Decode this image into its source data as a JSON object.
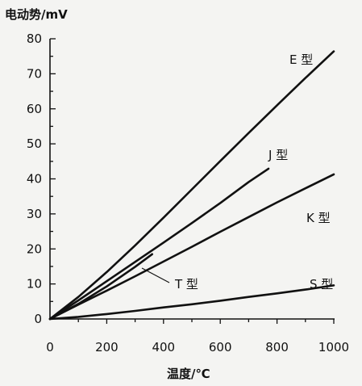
{
  "chart_data": {
    "type": "line",
    "xlabel": "温度/℃",
    "ylabel": "电动势/mV",
    "xlim": [
      0,
      1000
    ],
    "ylim": [
      0,
      80
    ],
    "x_ticks": [
      0,
      200,
      400,
      600,
      800,
      1000
    ],
    "y_ticks": [
      0,
      10,
      20,
      30,
      40,
      50,
      60,
      70,
      80
    ],
    "x_tick_labels": [
      "0",
      "200",
      "400",
      "600",
      "800",
      "1000"
    ],
    "y_tick_labels": [
      "0",
      "10",
      "20",
      "30",
      "40",
      "50",
      "60",
      "70",
      "80"
    ],
    "grid": false,
    "legend": "none",
    "series": [
      {
        "name": "E 型",
        "x": [
          0,
          100,
          200,
          300,
          400,
          500,
          600,
          700,
          800,
          900,
          1000
        ],
        "y": [
          0,
          6.3,
          13.4,
          21.0,
          28.9,
          37.0,
          45.1,
          53.1,
          61.0,
          68.8,
          76.4
        ]
      },
      {
        "name": "J 型",
        "x": [
          0,
          100,
          200,
          300,
          400,
          500,
          600,
          700,
          770
        ],
        "y": [
          0,
          5.3,
          10.8,
          16.3,
          21.8,
          27.4,
          33.1,
          39.1,
          42.9
        ]
      },
      {
        "name": "K 型",
        "x": [
          0,
          100,
          200,
          300,
          400,
          500,
          600,
          700,
          800,
          900,
          1000
        ],
        "y": [
          0,
          4.1,
          8.1,
          12.2,
          16.4,
          20.6,
          24.9,
          29.1,
          33.3,
          37.3,
          41.3
        ]
      },
      {
        "name": "T 型",
        "x": [
          0,
          100,
          200,
          300,
          360
        ],
        "y": [
          0,
          4.3,
          9.3,
          14.9,
          18.5
        ]
      },
      {
        "name": "S 型",
        "x": [
          0,
          100,
          200,
          300,
          400,
          500,
          600,
          700,
          800,
          900,
          1000
        ],
        "y": [
          0,
          0.6,
          1.4,
          2.3,
          3.3,
          4.2,
          5.2,
          6.3,
          7.3,
          8.4,
          9.6
        ]
      }
    ]
  }
}
